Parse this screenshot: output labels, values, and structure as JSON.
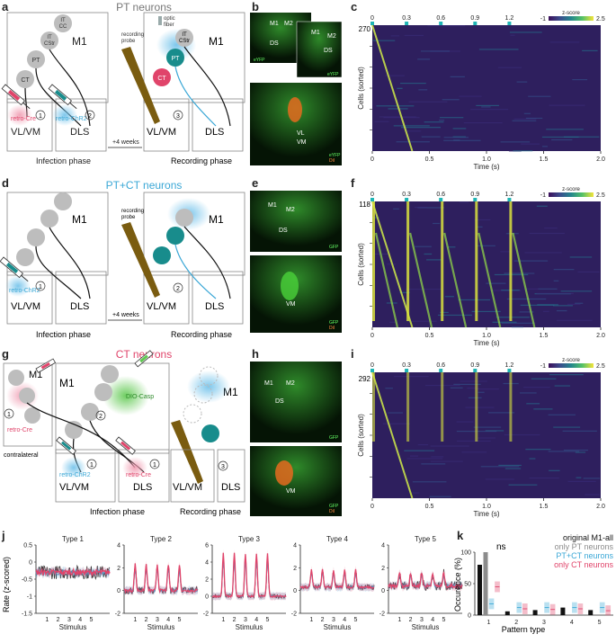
{
  "figure": {
    "panel_letters": [
      "a",
      "b",
      "c",
      "d",
      "e",
      "f",
      "g",
      "h",
      "i",
      "j",
      "k"
    ],
    "colors": {
      "pt": "#8c8c8c",
      "ptct": "#3aa7d6",
      "ct": "#e0446a",
      "teal": "#188c8c",
      "probe": "#7a5c10",
      "heat_low": "#2b1b57",
      "heat_high": "#f0e24a"
    }
  },
  "row_a": {
    "title": "PT neurons",
    "infection_phase": "Infection phase",
    "recording_phase": "Recording phase",
    "weeks": "+4 weeks",
    "m1": "M1",
    "vlvm": "VL/VM",
    "dls": "DLS",
    "it_cc": [
      "IT",
      "CC"
    ],
    "it_cstr": [
      "IT",
      "CStr"
    ],
    "pt": "PT",
    "ct": "CT",
    "retro_cre": "retro-Cre",
    "retro_chr2": "retro-ChR2",
    "n1": "1",
    "n2": "2",
    "n3": "3",
    "optic_fiber": [
      "optic",
      "fiber"
    ],
    "recording_probe": [
      "recording",
      "probe"
    ]
  },
  "row_d": {
    "title": "PT+CT neurons",
    "infection_phase": "Infection phase",
    "recording_phase": "Recording phase",
    "weeks": "+4 weeks",
    "m1": "M1",
    "vlvm": "VL/VM",
    "dls": "DLS",
    "retro_chr2": "retro-ChR2",
    "n1": "1",
    "n2": "2",
    "recording_probe": [
      "recording",
      "probe"
    ]
  },
  "row_g": {
    "title": "CT neurons",
    "infection_phase": "Infection phase",
    "recording_phase": "Recording phase",
    "m1": "M1",
    "vlvm": "VL/VM",
    "dls": "DLS",
    "retro_cre": "retro-Cre",
    "retro_chr2": "retro-ChR2",
    "dio_casp": "DIO-Casp",
    "contralateral": "contralateral",
    "n1": "1",
    "n2": "2",
    "n3": "3"
  },
  "histology": {
    "b_top": [
      "M1",
      "M2",
      "DS",
      "eYFP"
    ],
    "b_top2": [
      "M1",
      "M2",
      "DS",
      "eYFP"
    ],
    "b_bottom": [
      "VL",
      "VM",
      "eYFP",
      "DiI"
    ],
    "e_top": [
      "M1",
      "M2",
      "DS",
      "GFP"
    ],
    "e_bottom": [
      "VM",
      "GFP",
      "DiI"
    ],
    "h_top": [
      "M1",
      "M2",
      "DS",
      "GFP"
    ],
    "h_bottom": [
      "VM",
      "GFP",
      "DiI"
    ]
  },
  "heatmaps": {
    "stim_labels": [
      "0",
      "0.3",
      "0.6",
      "0.9",
      "1.2"
    ],
    "time_ticks": [
      "0",
      "0.5",
      "1.0",
      "1.5",
      "2.0"
    ],
    "xlabel": "Time (s)",
    "ylabel": "Cells (sorted)",
    "colorbar_title": "z-score",
    "colorbar_min": "-1",
    "colorbar_max": "2.5",
    "c_count": "270",
    "f_count": "118",
    "i_count": "292"
  },
  "chart_data": [
    {
      "panel": "j",
      "type": "line",
      "ylabel": "Rate (z-scored)",
      "xlabel": "Stimulus",
      "stimulus_ticks": [
        "1",
        "2",
        "3",
        "4",
        "5"
      ],
      "series_colors": [
        "#3d3d3d",
        "#3aa7d6",
        "#e0446a"
      ],
      "subplots": [
        {
          "title": "Type 1",
          "ylim": [
            -1.5,
            0.5
          ],
          "yticks": [
            "0.5",
            "0",
            "-0.5",
            "-1",
            "-1.5"
          ],
          "peak": 0.0,
          "baseline": -0.3,
          "noise": 0.25
        },
        {
          "title": "Type 2",
          "ylim": [
            -2,
            4
          ],
          "yticks": [
            "4",
            "2",
            "0",
            "-2"
          ],
          "peak": 2.3,
          "baseline": 0.0,
          "noise": 0.4
        },
        {
          "title": "Type 3",
          "ylim": [
            -2,
            6
          ],
          "yticks": [
            "6",
            "4",
            "2",
            "0",
            "-2"
          ],
          "peak": 5.0,
          "baseline": 0.0,
          "noise": 0.3
        },
        {
          "title": "Type 4",
          "ylim": [
            -2,
            4
          ],
          "yticks": [
            "4",
            "2",
            "0",
            "-2"
          ],
          "peak": 1.5,
          "baseline": 0.3,
          "noise": 0.3
        },
        {
          "title": "Type 5",
          "ylim": [
            -2,
            4
          ],
          "yticks": [
            "4",
            "2",
            "0",
            "-2"
          ],
          "peak": 1.2,
          "baseline": 0.4,
          "noise": 0.5
        }
      ]
    },
    {
      "panel": "k",
      "type": "bar",
      "ylabel": "Occurence (%)",
      "xlabel": "Pattern type",
      "categories": [
        "1",
        "2",
        "3",
        "4",
        "5"
      ],
      "ylim": [
        0,
        100
      ],
      "yticks": [
        "100",
        "50",
        "0"
      ],
      "series": [
        {
          "name": "original M1-all",
          "color": "#111111",
          "values": [
            80,
            6,
            8,
            12,
            8
          ]
        },
        {
          "name": "only PT neurons",
          "color": "#8c8c8c",
          "values": [
            100,
            0,
            0,
            0,
            0
          ]
        },
        {
          "name": "PT+CT neurons",
          "color": "#3aa7d6",
          "values": [
            18,
            12,
            12,
            12,
            12
          ]
        },
        {
          "name": "only CT neurons",
          "color": "#e0446a",
          "values": [
            45,
            10,
            9,
            10,
            7
          ]
        }
      ],
      "annotation": "ns"
    }
  ]
}
